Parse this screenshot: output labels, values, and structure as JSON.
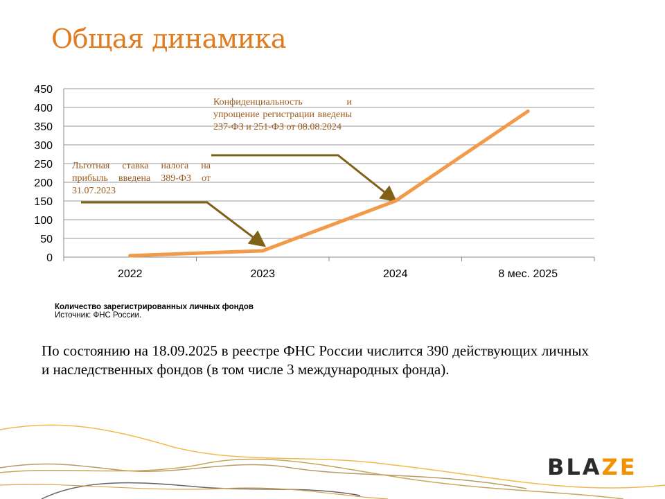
{
  "title": "Общая динамика",
  "chart_data": {
    "type": "line",
    "categories": [
      "2022",
      "2023",
      "2024",
      "8 мес. 2025"
    ],
    "values": [
      4,
      17,
      150,
      390
    ],
    "ylim": [
      0,
      450
    ],
    "yticks": [
      0,
      50,
      100,
      150,
      200,
      250,
      300,
      350,
      400,
      450
    ],
    "grid": true,
    "line_color": "#f39a4a",
    "annotations": [
      {
        "text": "Льготная ставка налога на прибыль введена  389-ФЗ от 31.07.2023",
        "points_to": "2023"
      },
      {
        "text": "Конфиденциальность и упрощение регистрации введены 237-ФЗ и 251-ФЗ от 08.08.2024",
        "points_to": "2024"
      }
    ],
    "annotation_color": "#7f6217"
  },
  "caption": {
    "title": "Количество зарегистрированных личных фондов",
    "source": "Источник:  ФНС России."
  },
  "body_text": "По состоянию на 18.09.2025 в реестре ФНС России числится 390 действующих личных и наследственных фондов (в том числе 3 международных фонда).",
  "logo": {
    "text_dark": "BLA",
    "text_accent": "ZE"
  }
}
